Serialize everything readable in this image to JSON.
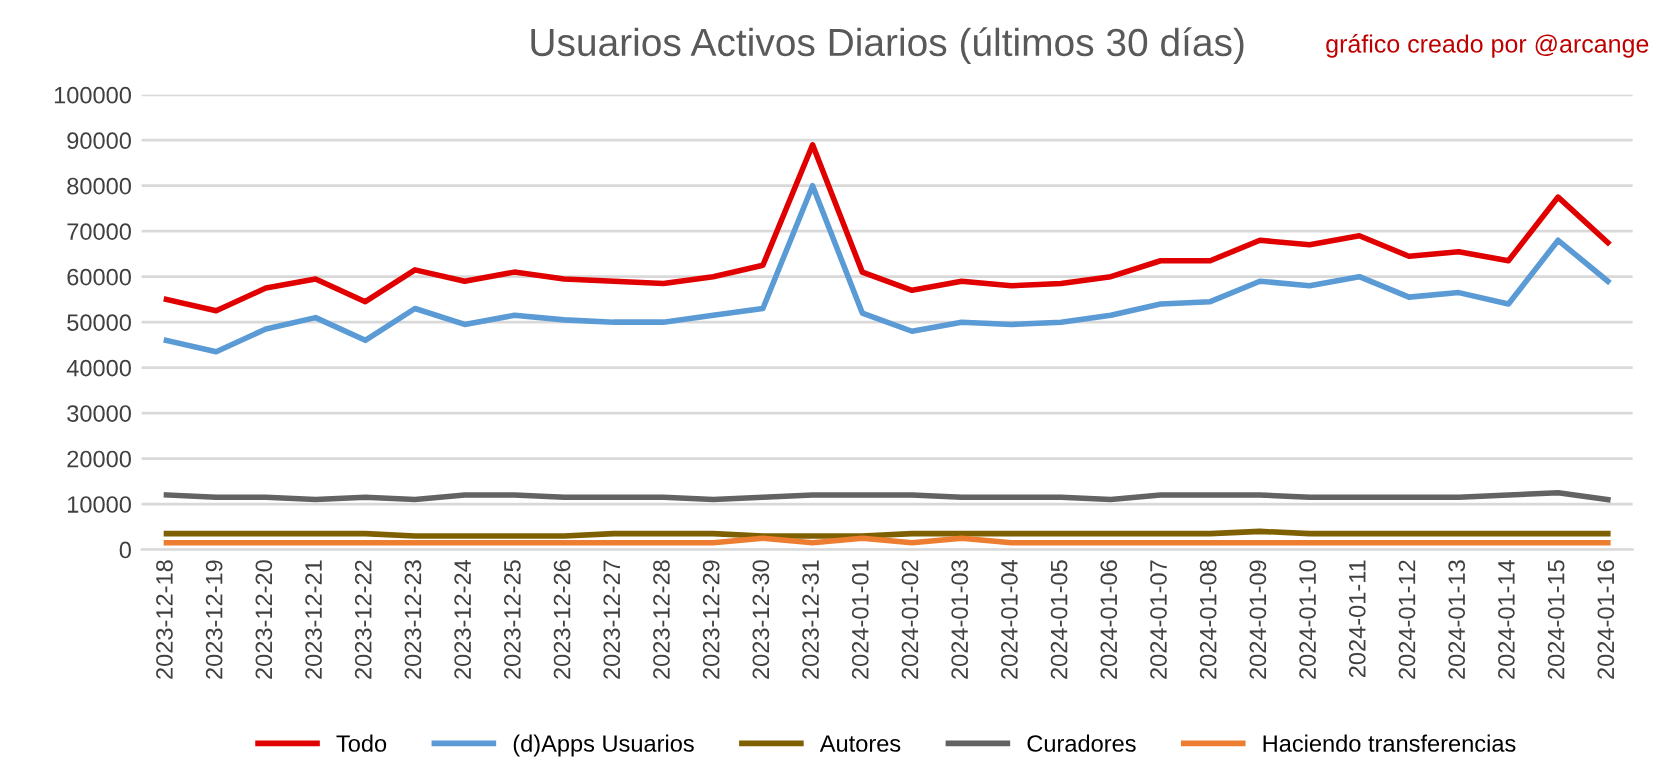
{
  "chart_data": {
    "type": "line",
    "title": "Usuarios Activos Diarios (últimos 30 días)",
    "annotations": [
      "gráfico creado por @arcange"
    ],
    "categories": [
      "2023-12-18",
      "2023-12-19",
      "2023-12-20",
      "2023-12-21",
      "2023-12-22",
      "2023-12-23",
      "2023-12-24",
      "2023-12-25",
      "2023-12-26",
      "2023-12-27",
      "2023-12-28",
      "2023-12-29",
      "2023-12-30",
      "2023-12-31",
      "2024-01-01",
      "2024-01-02",
      "2024-01-03",
      "2024-01-04",
      "2024-01-05",
      "2024-01-06",
      "2024-01-07",
      "2024-01-08",
      "2024-01-09",
      "2024-01-10",
      "2024-01-11",
      "2024-01-12",
      "2024-01-13",
      "2024-01-14",
      "2024-01-15",
      "2024-01-16"
    ],
    "series": [
      {
        "name": "Todo",
        "color": "#e00000",
        "values": [
          55000,
          52500,
          57500,
          59500,
          54500,
          61500,
          59000,
          61000,
          59500,
          59000,
          58500,
          60000,
          62500,
          89000,
          61000,
          57000,
          59000,
          58000,
          58500,
          60000,
          63500,
          63500,
          68000,
          67000,
          69000,
          64500,
          65500,
          63500,
          77500,
          67500
        ]
      },
      {
        "name": "(d)Apps Usuarios",
        "color": "#5b9bd5",
        "values": [
          46000,
          43500,
          48500,
          51000,
          46000,
          53000,
          49500,
          51500,
          50500,
          50000,
          50000,
          51500,
          53000,
          80000,
          52000,
          48000,
          50000,
          49500,
          50000,
          51500,
          54000,
          54500,
          59000,
          58000,
          60000,
          55500,
          56500,
          54000,
          68000,
          59000
        ]
      },
      {
        "name": "Autores",
        "color": "#7f6000",
        "values": [
          3500,
          3500,
          3500,
          3500,
          3500,
          3000,
          3000,
          3000,
          3000,
          3500,
          3500,
          3500,
          3000,
          3000,
          3000,
          3500,
          3500,
          3500,
          3500,
          3500,
          3500,
          3500,
          4000,
          3500,
          3500,
          3500,
          3500,
          3500,
          3500,
          3500
        ]
      },
      {
        "name": "Curadores",
        "color": "#636363",
        "values": [
          12000,
          11500,
          11500,
          11000,
          11500,
          11000,
          12000,
          12000,
          11500,
          11500,
          11500,
          11000,
          11500,
          12000,
          12000,
          12000,
          11500,
          11500,
          11500,
          11000,
          12000,
          12000,
          12000,
          11500,
          11500,
          11500,
          11500,
          12000,
          12500,
          11000
        ]
      },
      {
        "name": "Haciendo transferencias",
        "color": "#ed7d31",
        "values": [
          1500,
          1500,
          1500,
          1500,
          1500,
          1500,
          1500,
          1500,
          1500,
          1500,
          1500,
          1500,
          2500,
          1500,
          2500,
          1500,
          2500,
          1500,
          1500,
          1500,
          1500,
          1500,
          1500,
          1500,
          1500,
          1500,
          1500,
          1500,
          1500,
          1500
        ]
      }
    ],
    "ylim": [
      0,
      100000
    ],
    "yticks": [
      0,
      10000,
      20000,
      30000,
      40000,
      50000,
      60000,
      70000,
      80000,
      90000,
      100000
    ],
    "grid": "y",
    "legend": "bottom",
    "marker": "none",
    "line_style": "solid"
  }
}
